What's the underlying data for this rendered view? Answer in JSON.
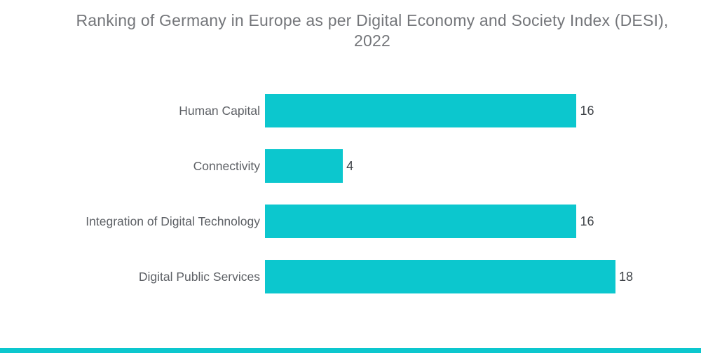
{
  "title": {
    "line1": "Ranking of Germany in Europe as per Digital Economy and Society Index (DESI),",
    "line2": "2022"
  },
  "chart_data": {
    "type": "bar",
    "orientation": "horizontal",
    "title": "Ranking of Germany in Europe as per Digital Economy and Society Index (DESI), 2022",
    "categories": [
      "Human Capital",
      "Connectivity",
      "Integration of Digital Technology",
      "Digital Public Services"
    ],
    "values": [
      16,
      4,
      16,
      18
    ],
    "value_labels": [
      "16",
      "4",
      "16",
      "18"
    ],
    "xlabel": "",
    "ylabel": "",
    "xlim": [
      0,
      18
    ],
    "grid": false,
    "legend": false,
    "value_label_position": "right-of-bar",
    "bar_color": "#0CC7CE",
    "background_color": "#FFFFFF"
  },
  "colors": {
    "bar": "#0CC7CE",
    "title_text": "#74767A",
    "category_text": "#5E6166",
    "value_text": "#404449",
    "accent_bar": "#0CC7CE",
    "background": "#FFFFFF"
  }
}
